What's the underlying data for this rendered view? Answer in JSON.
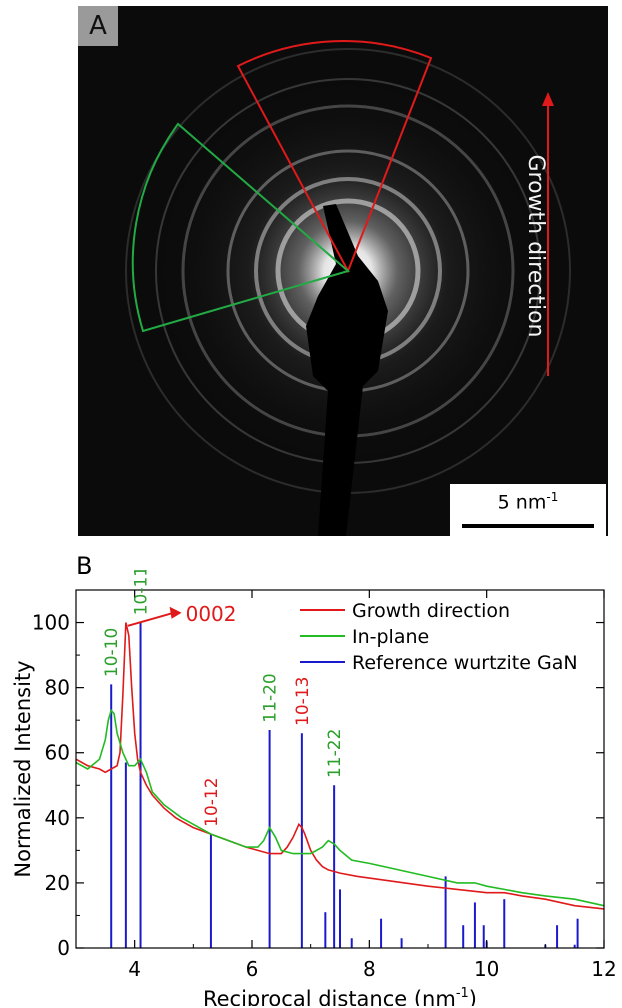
{
  "panel_a": {
    "tag": "A",
    "growth_label": "Growth direction",
    "scale_label": "5 nm",
    "scale_sup": "-1"
  },
  "panel_b": {
    "tag": "B"
  },
  "colors": {
    "growth": "#e01a1a",
    "inplane": "#22bb22",
    "reference": "#1a1acc",
    "label_red": "#e01a1a",
    "label_green": "#2aa02a"
  },
  "chart_data": {
    "type": "line",
    "xlabel": "Reciprocal distance (nm",
    "xlabel_sup": "-1",
    "xlabel_end": ")",
    "ylabel": "Normalized Intensity",
    "xlim": [
      3,
      12
    ],
    "ylim": [
      0,
      110
    ],
    "xticks": [
      4,
      6,
      8,
      10,
      12
    ],
    "yticks": [
      0,
      20,
      40,
      60,
      80,
      100
    ],
    "legend": {
      "position": "top-right"
    },
    "series": [
      {
        "name": "Growth direction",
        "color": "#e01a1a",
        "x": [
          3.0,
          3.2,
          3.4,
          3.5,
          3.6,
          3.7,
          3.75,
          3.8,
          3.85,
          3.9,
          3.95,
          4.0,
          4.05,
          4.1,
          4.2,
          4.3,
          4.5,
          4.7,
          5.0,
          5.3,
          5.6,
          5.9,
          6.1,
          6.3,
          6.5,
          6.6,
          6.7,
          6.8,
          6.85,
          6.9,
          7.0,
          7.1,
          7.2,
          7.3,
          7.5,
          7.8,
          8.2,
          8.6,
          9.0,
          9.5,
          10.0,
          10.3,
          10.6,
          11.0,
          11.5,
          12.0
        ],
        "y": [
          58,
          56,
          55,
          54,
          55,
          56,
          60,
          78,
          100,
          96,
          80,
          66,
          58,
          54,
          50,
          47,
          43,
          40,
          37,
          35,
          33,
          31,
          30,
          29,
          29,
          31,
          34,
          38,
          37,
          35,
          30,
          27,
          25,
          24,
          23,
          22,
          21,
          20,
          19,
          18,
          17,
          17,
          16,
          15,
          13,
          12
        ]
      },
      {
        "name": "In-plane",
        "color": "#22bb22",
        "x": [
          3.0,
          3.2,
          3.4,
          3.5,
          3.55,
          3.6,
          3.65,
          3.7,
          3.8,
          3.9,
          4.0,
          4.1,
          4.2,
          4.3,
          4.5,
          4.8,
          5.0,
          5.3,
          5.6,
          5.9,
          6.1,
          6.2,
          6.3,
          6.4,
          6.5,
          6.7,
          7.0,
          7.2,
          7.3,
          7.4,
          7.5,
          7.7,
          8.0,
          8.5,
          9.0,
          9.5,
          9.8,
          10.0,
          10.3,
          10.6,
          11.0,
          11.5,
          12.0
        ],
        "y": [
          57,
          55,
          58,
          64,
          70,
          73,
          72,
          66,
          60,
          56,
          56,
          58,
          54,
          48,
          44,
          40,
          38,
          35,
          33,
          31,
          31,
          33,
          37,
          34,
          30,
          29,
          29,
          31,
          33,
          32,
          30,
          27,
          26,
          24,
          22,
          20,
          20,
          19,
          18,
          17,
          16,
          15,
          13
        ]
      }
    ],
    "reference_bars": {
      "name": "Reference wurtzite GaN",
      "color": "#1a1acc",
      "x": [
        3.6,
        3.85,
        4.1,
        5.3,
        6.3,
        6.85,
        7.4,
        7.5,
        7.25,
        7.7,
        8.2,
        8.55,
        9.3,
        9.6,
        9.8,
        9.95,
        10.0,
        10.3,
        11.0,
        11.2,
        11.5,
        11.55
      ],
      "values": [
        81,
        57,
        100,
        35,
        67,
        66,
        50,
        18,
        11,
        3,
        9,
        3,
        22,
        7,
        14,
        7,
        2,
        15,
        1,
        7,
        1,
        9
      ]
    },
    "peak_labels": [
      {
        "text": "10-10",
        "x": 3.6,
        "y": 82,
        "color": "green"
      },
      {
        "text": "10-11",
        "x": 4.1,
        "y": 101,
        "color": "green"
      },
      {
        "text": "10-12",
        "x": 5.3,
        "y": 36,
        "color": "red"
      },
      {
        "text": "11-20",
        "x": 6.3,
        "y": 68,
        "color": "green"
      },
      {
        "text": "10-13",
        "x": 6.85,
        "y": 67,
        "color": "red"
      },
      {
        "text": "11-22",
        "x": 7.4,
        "y": 51,
        "color": "green"
      }
    ],
    "annotation": {
      "text": "0002",
      "x": 4.8,
      "y": 103
    }
  }
}
